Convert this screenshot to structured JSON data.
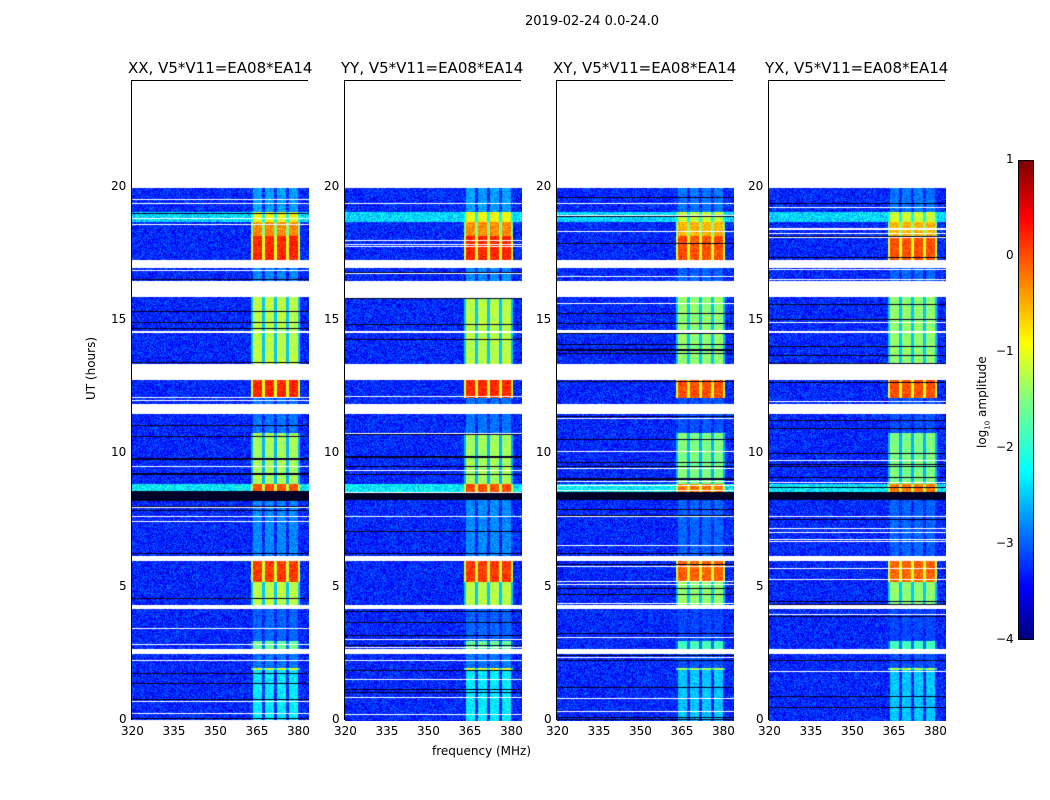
{
  "suptitle": "2019-02-24 0.0-24.0",
  "xlabel": "frequency (MHz)",
  "ylabel": "UT (hours)",
  "panels": [
    {
      "title": "XX, V5*V11=EA08*EA14"
    },
    {
      "title": "YY, V5*V11=EA08*EA14"
    },
    {
      "title": "XY, V5*V11=EA08*EA14"
    },
    {
      "title": "YX, V5*V11=EA08*EA14"
    }
  ],
  "colorbar": {
    "label": "log10 amplitude",
    "label_main": "log",
    "label_sub": "10",
    "label_rest": " amplitude",
    "ticks": [
      "1",
      "0",
      "−1",
      "−2",
      "−3",
      "−4"
    ]
  },
  "chart_data": {
    "type": "heatmap",
    "title": "2019-02-24 0.0-24.0",
    "xlabel": "frequency (MHz)",
    "ylabel": "UT (hours)",
    "xlim": [
      320,
      384
    ],
    "ylim": [
      0,
      24
    ],
    "xticks": [
      "320",
      "335",
      "350",
      "365",
      "380"
    ],
    "yticks": [
      "0",
      "5",
      "10",
      "15",
      "20"
    ],
    "clim": [
      -4,
      1
    ],
    "colormap": "jet",
    "background_level": -3.2,
    "data_end_hour": 20,
    "signal_band_mhz": [
      363,
      380.5
    ],
    "segments": [
      {
        "t": [
          0,
          1.9
        ],
        "band": -2.2
      },
      {
        "t": [
          1.9,
          2.0
        ],
        "band": -1.0
      },
      {
        "t": [
          2.0,
          2.5
        ],
        "band": -2.8
      },
      {
        "t": [
          2.5,
          2.7
        ],
        "flag": true
      },
      {
        "t": [
          2.7,
          3.0
        ],
        "band": -1.6
      },
      {
        "t": [
          3.0,
          4.2
        ],
        "band": -2.9
      },
      {
        "t": [
          4.2,
          4.35
        ],
        "flag": true
      },
      {
        "t": [
          4.35,
          5.2
        ],
        "band": -1.2
      },
      {
        "t": [
          5.2,
          6.0
        ],
        "band": 0.1
      },
      {
        "t": [
          6.0,
          6.2
        ],
        "flag": true
      },
      {
        "t": [
          6.2,
          8.3
        ],
        "band": -2.7
      },
      {
        "t": [
          8.6,
          8.9
        ],
        "band": 0.0,
        "bg": -2.2
      },
      {
        "t": [
          8.9,
          10.8
        ],
        "band": -1.3
      },
      {
        "t": [
          10.8,
          11.5
        ],
        "band": -2.8
      },
      {
        "t": [
          11.5,
          11.9
        ],
        "flag": true
      },
      {
        "t": [
          11.9,
          12.1
        ],
        "band": -2.8
      },
      {
        "t": [
          12.1,
          12.8
        ],
        "band": 0.2
      },
      {
        "t": [
          12.8,
          13.4
        ],
        "flag": true
      },
      {
        "t": [
          13.4,
          15.9
        ],
        "band": -1.2
      },
      {
        "t": [
          15.9,
          16.5
        ],
        "flag": true
      },
      {
        "t": [
          16.5,
          17.0
        ],
        "band": -2.7
      },
      {
        "t": [
          17.0,
          17.3
        ],
        "flag": true
      },
      {
        "t": [
          17.3,
          18.2
        ],
        "band": 0.2
      },
      {
        "t": [
          18.2,
          18.7
        ],
        "band": -0.3
      },
      {
        "t": [
          18.7,
          19.1
        ],
        "band": -0.9,
        "bg": -2.3
      },
      {
        "t": [
          19.1,
          20.0
        ],
        "band": -2.6
      }
    ],
    "colors": {
      "flag": "#ffffff",
      "frame": "#000000"
    }
  }
}
